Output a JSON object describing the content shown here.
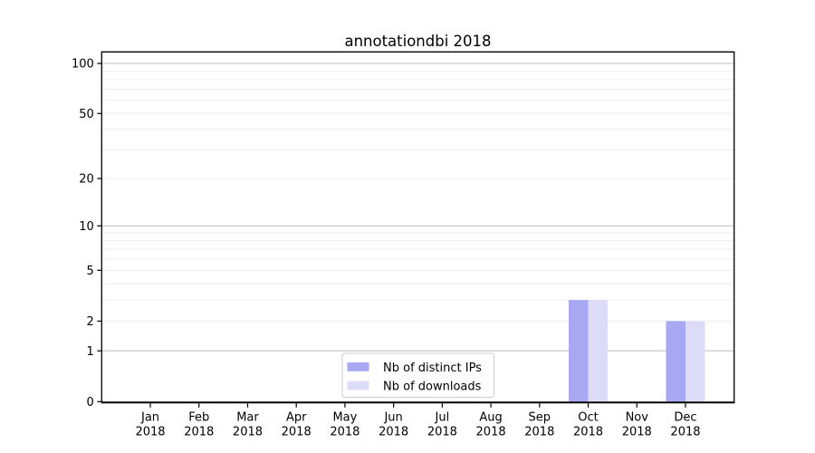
{
  "chart_data": {
    "type": "bar",
    "title": "annotationdbi 2018",
    "x_year": "2018",
    "months": [
      "Jan",
      "Feb",
      "Mar",
      "Apr",
      "May",
      "Jun",
      "Jul",
      "Aug",
      "Sep",
      "Oct",
      "Nov",
      "Dec"
    ],
    "categories": [
      "Jan 2018",
      "Feb 2018",
      "Mar 2018",
      "Apr 2018",
      "May 2018",
      "Jun 2018",
      "Jul 2018",
      "Aug 2018",
      "Sep 2018",
      "Oct 2018",
      "Nov 2018",
      "Dec 2018"
    ],
    "series": [
      {
        "name": "Nb of distinct IPs",
        "color": "#a8a8f2",
        "values": [
          0,
          0,
          0,
          0,
          0,
          0,
          0,
          0,
          0,
          3,
          0,
          2
        ]
      },
      {
        "name": "Nb of downloads",
        "color": "#dcdcf8",
        "values": [
          0,
          0,
          0,
          0,
          0,
          0,
          0,
          0,
          0,
          3,
          0,
          2
        ]
      }
    ],
    "y_axis": {
      "scale": "log10(1+x)",
      "tick_values": [
        0,
        1,
        2,
        5,
        10,
        20,
        50,
        100
      ],
      "tick_labels": [
        "0",
        "1",
        "2",
        "5",
        "10",
        "20",
        "50",
        "100"
      ],
      "top_value": 118,
      "major_gridline_values": [
        1,
        10,
        100
      ],
      "minor_gridline_values": [
        2,
        3,
        4,
        5,
        6,
        7,
        8,
        9,
        20,
        30,
        40,
        50,
        60,
        70,
        80,
        90
      ]
    },
    "legend": {
      "position": "bottom-center",
      "items": [
        "Nb of distinct IPs",
        "Nb of downloads"
      ]
    },
    "colors": {
      "bar_distinct_ips": "#a8a8f2",
      "bar_downloads": "#dcdcf8",
      "axis": "#000000",
      "major_grid": "#c9c9c9",
      "minor_grid": "#ededed",
      "legend_border": "#cccccc",
      "background": "#ffffff",
      "text": "#000000"
    }
  }
}
